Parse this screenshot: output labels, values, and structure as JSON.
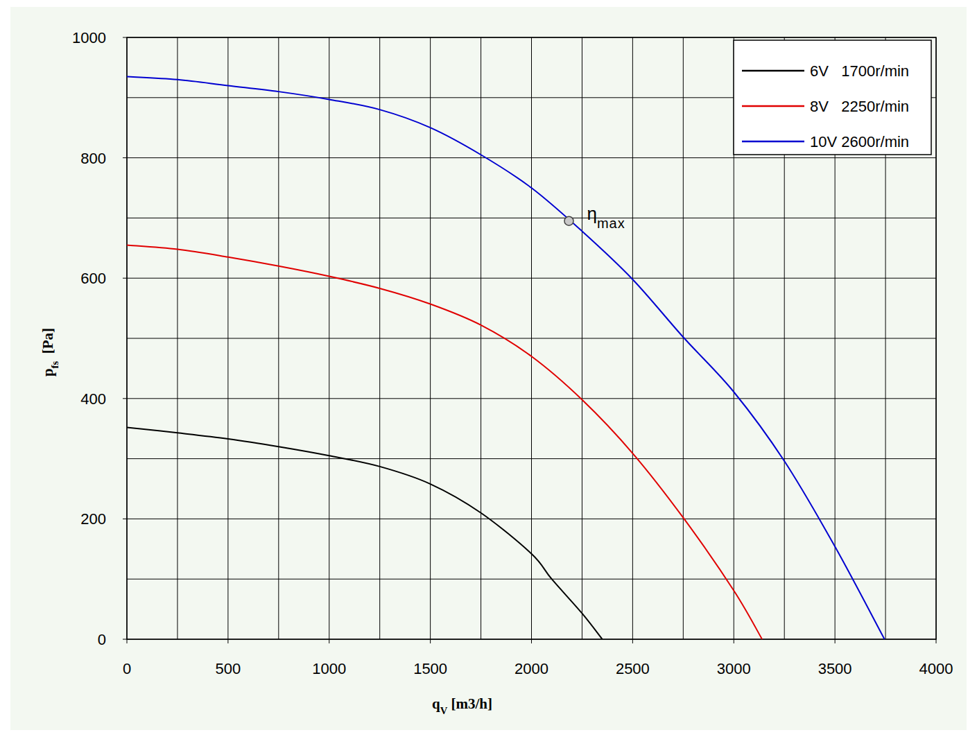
{
  "chart_data": {
    "type": "line",
    "xlabel": [
      "q",
      "V",
      " [m3/h]"
    ],
    "ylabel": [
      "p",
      "fs",
      "  [Pa]"
    ],
    "xlim": [
      0,
      4000
    ],
    "ylim": [
      0,
      1000
    ],
    "xticks": [
      0,
      500,
      1000,
      1500,
      2000,
      2500,
      3000,
      3500,
      4000
    ],
    "yticks": [
      0,
      200,
      400,
      600,
      800,
      1000
    ],
    "minor_xticks": [
      250,
      750,
      1250,
      1750,
      2250,
      2750,
      3250,
      3750
    ],
    "minor_yticks": [
      100,
      300,
      500,
      700,
      900
    ],
    "grid": true,
    "legend": "top-right",
    "series": [
      {
        "name": "6V   1700r/min",
        "color": "#000000",
        "x": [
          0,
          250,
          500,
          750,
          1000,
          1250,
          1500,
          1750,
          2000,
          2100,
          2250,
          2350
        ],
        "values": [
          352,
          343,
          333,
          320,
          305,
          287,
          258,
          210,
          142,
          100,
          43,
          0
        ]
      },
      {
        "name": "8V   2250r/min",
        "color": "#e00000",
        "x": [
          0,
          250,
          500,
          750,
          1000,
          1250,
          1500,
          1750,
          2000,
          2250,
          2500,
          2750,
          3000,
          3140
        ],
        "values": [
          655,
          648,
          635,
          620,
          603,
          583,
          557,
          522,
          470,
          398,
          309,
          202,
          81,
          0
        ]
      },
      {
        "name": "10V 2600r/min",
        "color": "#0000d0",
        "x": [
          0,
          250,
          500,
          750,
          1000,
          1250,
          1500,
          1750,
          2000,
          2250,
          2500,
          2750,
          3000,
          3250,
          3500,
          3745
        ],
        "values": [
          935,
          930,
          920,
          910,
          897,
          880,
          850,
          805,
          750,
          678,
          598,
          502,
          411,
          296,
          154,
          0
        ]
      }
    ],
    "annotations": [
      {
        "text": [
          "η",
          "max"
        ],
        "x": 2185,
        "y": 695,
        "marker": "circle"
      }
    ]
  }
}
